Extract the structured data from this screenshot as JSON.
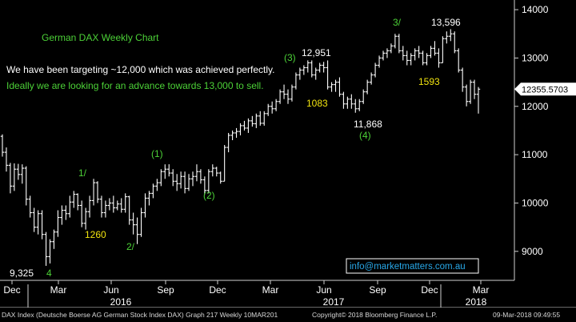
{
  "chart_data": {
    "type": "candlestick",
    "title": "German DAX Weekly Chart",
    "comment_1": "We have been targeting ~12,000 which was achieved perfectly.",
    "comment_2": "Ideally we are looking for an advance towards 13,000 to sell.",
    "contact": "info@marketmatters.com.au",
    "last_price_label": "12355.5703",
    "last_price": 12355.57,
    "ylim": [
      8400,
      14200
    ],
    "yticks": [
      9000,
      10000,
      11000,
      12000,
      13000,
      14000
    ],
    "y_tick_labels": [
      "9000",
      "10000",
      "11000",
      "12000",
      "13000",
      "14000"
    ],
    "x_tick_labels": [
      "Dec",
      "Mar",
      "Jun",
      "Sep",
      "Dec",
      "Mar",
      "Jun",
      "Sep",
      "Dec",
      "Mar"
    ],
    "year_labels": [
      "2016",
      "2017",
      "2018"
    ],
    "annotations": [
      {
        "text": "9,325",
        "kind": "price"
      },
      {
        "text": "4",
        "kind": "wave"
      },
      {
        "text": "1/",
        "kind": "wave"
      },
      {
        "text": "1260",
        "kind": "points"
      },
      {
        "text": "2/",
        "kind": "wave"
      },
      {
        "text": "(1)",
        "kind": "wave"
      },
      {
        "text": "(2)",
        "kind": "wave"
      },
      {
        "text": "(3)",
        "kind": "wave"
      },
      {
        "text": "12,951",
        "kind": "price"
      },
      {
        "text": "1083",
        "kind": "points"
      },
      {
        "text": "11,868",
        "kind": "price"
      },
      {
        "text": "(4)",
        "kind": "wave"
      },
      {
        "text": "3/",
        "kind": "wave"
      },
      {
        "text": "13,596",
        "kind": "price"
      },
      {
        "text": "1593",
        "kind": "points"
      }
    ],
    "colors": {
      "background": "#000000",
      "bars": "#ffffff",
      "wave": "#4cd137",
      "points": "#f1e40f",
      "text": "#ffffff",
      "contact": "#28a8e8"
    },
    "ohlc": [
      [
        11380,
        11420,
        10960,
        11050
      ],
      [
        11050,
        11150,
        10650,
        10780
      ],
      [
        10780,
        10830,
        10200,
        10350
      ],
      [
        10350,
        10820,
        10250,
        10700
      ],
      [
        10700,
        10810,
        10480,
        10590
      ],
      [
        10590,
        10800,
        10400,
        10720
      ],
      [
        10720,
        10760,
        9950,
        10080
      ],
      [
        10080,
        10150,
        9700,
        9800
      ],
      [
        9800,
        9900,
        9400,
        9500
      ],
      [
        9500,
        9850,
        9350,
        9780
      ],
      [
        9780,
        9850,
        9250,
        9350
      ],
      [
        9350,
        9400,
        8700,
        8890
      ],
      [
        8890,
        9250,
        8750,
        9200
      ],
      [
        9200,
        9450,
        9050,
        9400
      ],
      [
        9400,
        9850,
        9300,
        9700
      ],
      [
        9700,
        9950,
        9550,
        9850
      ],
      [
        9850,
        9950,
        9650,
        9780
      ],
      [
        9780,
        10150,
        9700,
        10020
      ],
      [
        10020,
        10250,
        9900,
        10180
      ],
      [
        10180,
        10200,
        9850,
        9950
      ],
      [
        9950,
        10050,
        9500,
        9580
      ],
      [
        9580,
        9900,
        9450,
        9820
      ],
      [
        9820,
        10150,
        9700,
        10050
      ],
      [
        10050,
        10500,
        9950,
        10420
      ],
      [
        10420,
        10450,
        10000,
        10080
      ],
      [
        10080,
        10150,
        9700,
        9800
      ],
      [
        9800,
        10050,
        9700,
        9950
      ],
      [
        9950,
        10100,
        9850,
        10000
      ],
      [
        10000,
        10150,
        9800,
        9900
      ],
      [
        9900,
        10050,
        9850,
        9980
      ],
      [
        9980,
        10100,
        9800,
        9870
      ],
      [
        9870,
        10200,
        9800,
        10130
      ],
      [
        10130,
        10150,
        9550,
        9650
      ],
      [
        9650,
        9800,
        9350,
        9550
      ],
      [
        9550,
        9700,
        9150,
        9350
      ],
      [
        9350,
        9900,
        9300,
        9800
      ],
      [
        9800,
        10200,
        9700,
        10100
      ],
      [
        10100,
        10250,
        9950,
        10200
      ],
      [
        10200,
        10400,
        10100,
        10350
      ],
      [
        10350,
        10500,
        10250,
        10420
      ],
      [
        10420,
        10700,
        10350,
        10650
      ],
      [
        10650,
        10800,
        10500,
        10700
      ],
      [
        10700,
        10802,
        10550,
        10620
      ],
      [
        10620,
        10700,
        10350,
        10450
      ],
      [
        10450,
        10600,
        10250,
        10400
      ],
      [
        10400,
        10650,
        10300,
        10550
      ],
      [
        10550,
        10650,
        10200,
        10300
      ],
      [
        10300,
        10600,
        10250,
        10500
      ],
      [
        10500,
        10650,
        10350,
        10550
      ],
      [
        10550,
        10800,
        10450,
        10650
      ],
      [
        10650,
        10700,
        10400,
        10480
      ],
      [
        10480,
        10550,
        10180,
        10260
      ],
      [
        10260,
        10700,
        10200,
        10650
      ],
      [
        10650,
        10800,
        10550,
        10720
      ],
      [
        10720,
        10750,
        10550,
        10620
      ],
      [
        10620,
        10650,
        10400,
        10450
      ],
      [
        10450,
        11200,
        10450,
        11150
      ],
      [
        11150,
        11450,
        11050,
        11400
      ],
      [
        11400,
        11500,
        11300,
        11450
      ],
      [
        11450,
        11550,
        11350,
        11480
      ],
      [
        11480,
        11650,
        11400,
        11600
      ],
      [
        11600,
        11700,
        11500,
        11550
      ],
      [
        11550,
        11750,
        11450,
        11700
      ],
      [
        11700,
        11800,
        11580,
        11640
      ],
      [
        11640,
        11850,
        11550,
        11800
      ],
      [
        11800,
        11900,
        11600,
        11650
      ],
      [
        11650,
        11900,
        11600,
        11850
      ],
      [
        11850,
        12050,
        11800,
        12000
      ],
      [
        12000,
        12100,
        11850,
        11950
      ],
      [
        11950,
        12150,
        11900,
        12100
      ],
      [
        12100,
        12350,
        12050,
        12300
      ],
      [
        12300,
        12450,
        12150,
        12250
      ],
      [
        12250,
        12350,
        12050,
        12150
      ],
      [
        12150,
        12450,
        12100,
        12400
      ],
      [
        12400,
        12700,
        12350,
        12650
      ],
      [
        12650,
        12800,
        12550,
        12750
      ],
      [
        12750,
        12850,
        12650,
        12800
      ],
      [
        12800,
        12951,
        12700,
        12900
      ],
      [
        12900,
        12950,
        12600,
        12650
      ],
      [
        12650,
        12800,
        12550,
        12750
      ],
      [
        12750,
        12900,
        12700,
        12850
      ],
      [
        12850,
        12920,
        12700,
        12800
      ],
      [
        12800,
        12950,
        12350,
        12400
      ],
      [
        12400,
        12500,
        12300,
        12450
      ],
      [
        12450,
        12550,
        12300,
        12500
      ],
      [
        12500,
        12600,
        12200,
        12250
      ],
      [
        12250,
        12300,
        11950,
        12050
      ],
      [
        12050,
        12200,
        11950,
        12150
      ],
      [
        12150,
        12250,
        11950,
        12050
      ],
      [
        12050,
        12150,
        11868,
        11950
      ],
      [
        11950,
        12150,
        11900,
        12100
      ],
      [
        12100,
        12350,
        12050,
        12300
      ],
      [
        12300,
        12550,
        12250,
        12500
      ],
      [
        12500,
        12700,
        12450,
        12650
      ],
      [
        12650,
        12900,
        12600,
        12850
      ],
      [
        12850,
        13050,
        12800,
        13000
      ],
      [
        13000,
        13150,
        12950,
        13100
      ],
      [
        13100,
        13200,
        13000,
        13150
      ],
      [
        13150,
        13300,
        13100,
        13250
      ],
      [
        13250,
        13500,
        13200,
        13450
      ],
      [
        13450,
        13500,
        13100,
        13150
      ],
      [
        13150,
        13250,
        12950,
        13050
      ],
      [
        13050,
        13150,
        12850,
        12950
      ],
      [
        12950,
        13100,
        12850,
        13050
      ],
      [
        13050,
        13200,
        12950,
        13150
      ],
      [
        13150,
        13250,
        13000,
        13100
      ],
      [
        13100,
        13150,
        12850,
        12900
      ],
      [
        12900,
        13100,
        12850,
        13050
      ],
      [
        13050,
        13250,
        13000,
        13200
      ],
      [
        13200,
        13350,
        13050,
        13100
      ],
      [
        13100,
        13200,
        12800,
        12900
      ],
      [
        12900,
        13450,
        12900,
        13400
      ],
      [
        13400,
        13550,
        13300,
        13450
      ],
      [
        13450,
        13596,
        13350,
        13500
      ],
      [
        13500,
        13550,
        13100,
        13150
      ],
      [
        13150,
        13200,
        12700,
        12750
      ],
      [
        12750,
        12800,
        12300,
        12400
      ],
      [
        12400,
        12450,
        12000,
        12100
      ],
      [
        12100,
        12550,
        12050,
        12500
      ],
      [
        12500,
        12550,
        12150,
        12250
      ],
      [
        12250,
        12400,
        11850,
        12355
      ]
    ]
  },
  "footer": {
    "left": "DAX Index (Deutsche Boerse AG German Stock Index DAX) Graph 217  Weekly 10MAR201",
    "middle": "Copyright© 2018 Bloomberg Finance L.P.",
    "right": "09-Mar-2018 09:49:55"
  }
}
